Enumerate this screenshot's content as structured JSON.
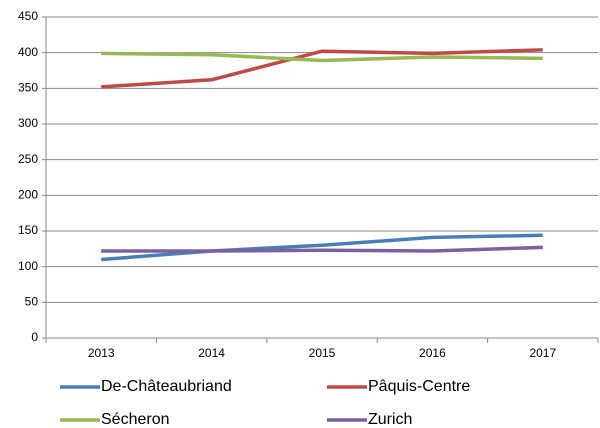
{
  "chart_data": {
    "type": "line",
    "categories": [
      "2013",
      "2014",
      "2015",
      "2016",
      "2017"
    ],
    "series": [
      {
        "name": "De-Châteaubriand",
        "color": "#4a7ebb",
        "values": [
          110,
          122,
          130,
          141,
          144
        ]
      },
      {
        "name": "Pâquis-Centre",
        "color": "#be4b48",
        "values": [
          352,
          362,
          402,
          399,
          404
        ]
      },
      {
        "name": "Sécheron",
        "color": "#98b954",
        "values": [
          399,
          397,
          389,
          394,
          392
        ]
      },
      {
        "name": "Zurich",
        "color": "#7d60a0",
        "values": [
          122,
          122,
          123,
          122,
          127
        ]
      }
    ],
    "ylim": [
      0,
      450
    ],
    "yticks": [
      0,
      50,
      100,
      150,
      200,
      250,
      300,
      350,
      400,
      450
    ],
    "grid": true,
    "legend": "bottom"
  }
}
